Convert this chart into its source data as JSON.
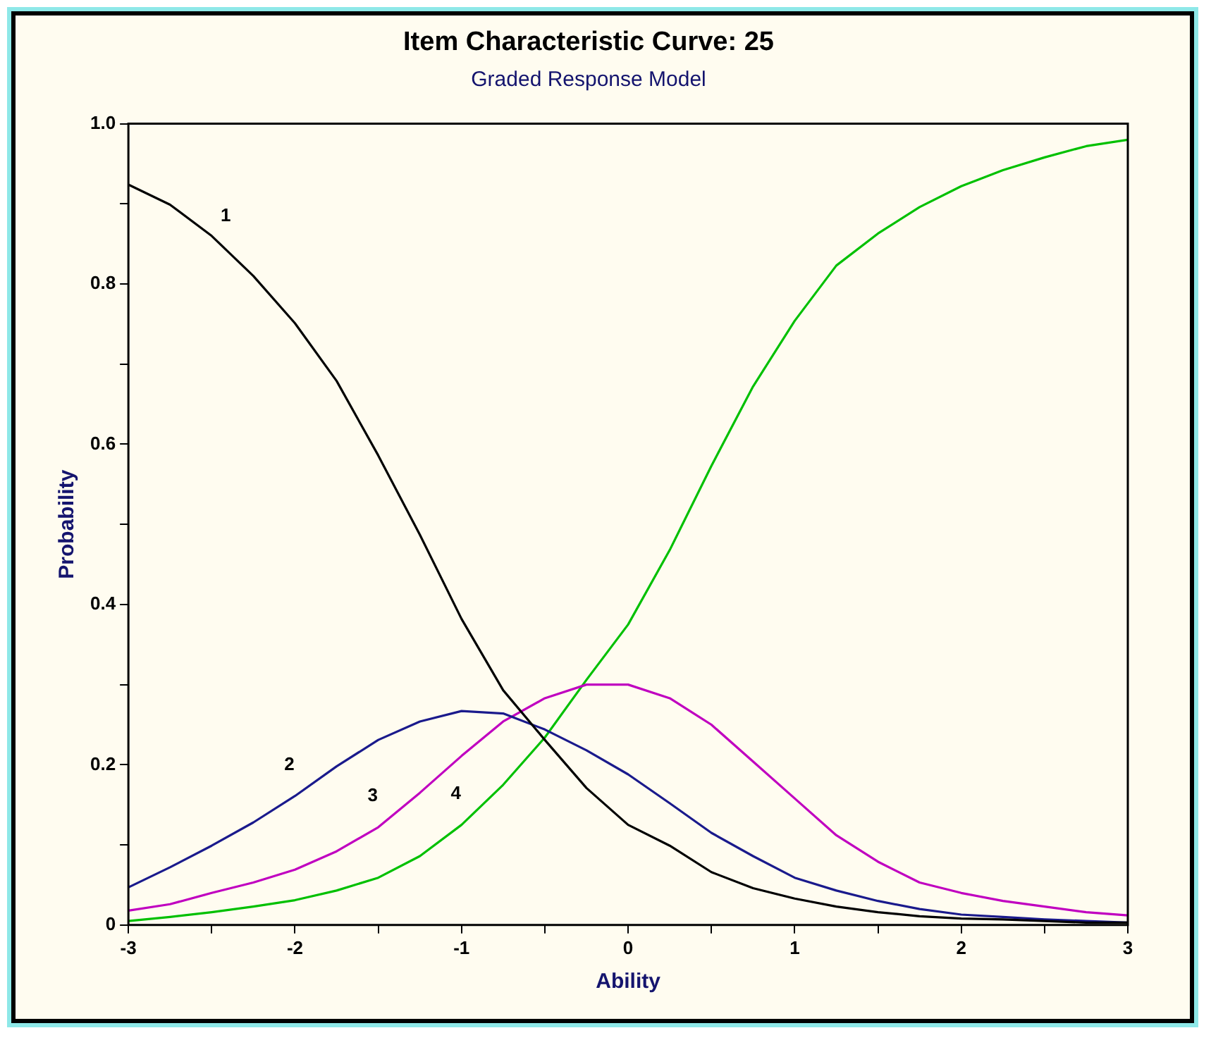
{
  "chart_data": {
    "type": "line",
    "title": "Item Characteristic Curve: 25",
    "subtitle": "Graded Response Model",
    "xlabel": "Ability",
    "ylabel": "Probability",
    "x": [
      -3,
      -2.75,
      -2.5,
      -2.25,
      -2,
      -1.75,
      -1.5,
      -1.25,
      -1,
      -0.75,
      -0.5,
      -0.25,
      0,
      0.25,
      0.5,
      0.75,
      1,
      1.25,
      1.5,
      1.75,
      2,
      2.25,
      2.5,
      2.75,
      3
    ],
    "series": [
      {
        "name": "1",
        "color": "#000000",
        "values": [
          0.924,
          0.899,
          0.86,
          0.81,
          0.751,
          0.679,
          0.586,
          0.487,
          0.382,
          0.293,
          0.231,
          0.171,
          0.125,
          0.099,
          0.066,
          0.046,
          0.033,
          0.023,
          0.016,
          0.011,
          0.008,
          0.007,
          0.005,
          0.003,
          0.003
        ]
      },
      {
        "name": "2",
        "color": "#1a1a8c",
        "values": [
          0.047,
          0.072,
          0.099,
          0.128,
          0.161,
          0.198,
          0.231,
          0.254,
          0.267,
          0.264,
          0.244,
          0.218,
          0.188,
          0.152,
          0.115,
          0.086,
          0.059,
          0.043,
          0.03,
          0.02,
          0.013,
          0.01,
          0.007,
          0.005,
          0.003
        ]
      },
      {
        "name": "3",
        "color": "#c000c0",
        "values": [
          0.018,
          0.026,
          0.04,
          0.053,
          0.069,
          0.092,
          0.122,
          0.165,
          0.211,
          0.254,
          0.283,
          0.3,
          0.3,
          0.283,
          0.25,
          0.204,
          0.158,
          0.112,
          0.079,
          0.053,
          0.04,
          0.03,
          0.023,
          0.016,
          0.012
        ]
      },
      {
        "name": "4",
        "color": "#00c000",
        "values": [
          0.005,
          0.01,
          0.016,
          0.023,
          0.031,
          0.043,
          0.059,
          0.086,
          0.125,
          0.175,
          0.234,
          0.306,
          0.375,
          0.468,
          0.573,
          0.672,
          0.754,
          0.823,
          0.863,
          0.896,
          0.922,
          0.942,
          0.958,
          0.972,
          0.98
        ]
      }
    ],
    "xlim": [
      -3,
      3
    ],
    "xticks": [
      -3,
      {
        "value": -2.5,
        "label": null
      },
      -2,
      {
        "value": -1.5,
        "label": null
      },
      -1,
      {
        "value": -0.5,
        "label": null
      },
      0,
      {
        "value": 0.5,
        "label": null
      },
      1,
      {
        "value": 1.5,
        "label": null
      },
      2,
      {
        "value": 2.5,
        "label": null
      },
      3
    ],
    "ylim": [
      0,
      1
    ],
    "yticks": [
      0,
      {
        "value": 0.1,
        "label": null
      },
      0.2,
      {
        "value": 0.3,
        "label": null
      },
      0.4,
      {
        "value": 0.5,
        "label": null
      },
      0.6,
      {
        "value": 0.7,
        "label": null
      },
      0.8,
      {
        "value": 0.9,
        "label": null
      },
      {
        "value": 1,
        "label": "1.0"
      }
    ],
    "marker": "none",
    "line_style": "solid"
  }
}
